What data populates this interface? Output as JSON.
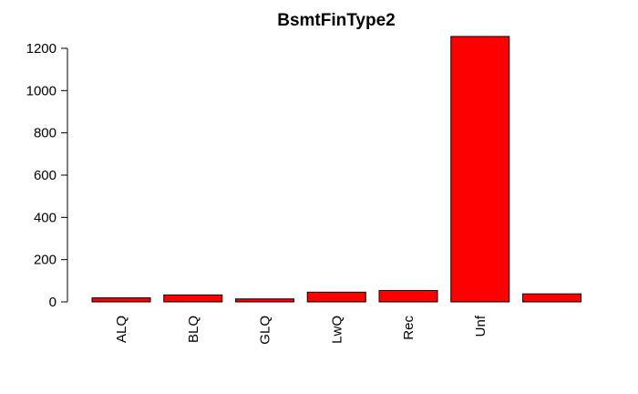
{
  "chart_data": {
    "type": "bar",
    "title": "BsmtFinType2",
    "xlabel": "",
    "ylabel": "",
    "categories": [
      "ALQ",
      "BLQ",
      "GLQ",
      "LwQ",
      "Rec",
      "Unf",
      ""
    ],
    "values": [
      19,
      33,
      14,
      46,
      54,
      1256,
      38
    ],
    "ylim": [
      0,
      1256
    ],
    "yticks": [
      0,
      200,
      400,
      600,
      800,
      1000,
      1200
    ],
    "grid": false,
    "bar_color": "#ff0000",
    "bar_edge_color": "#000000"
  }
}
